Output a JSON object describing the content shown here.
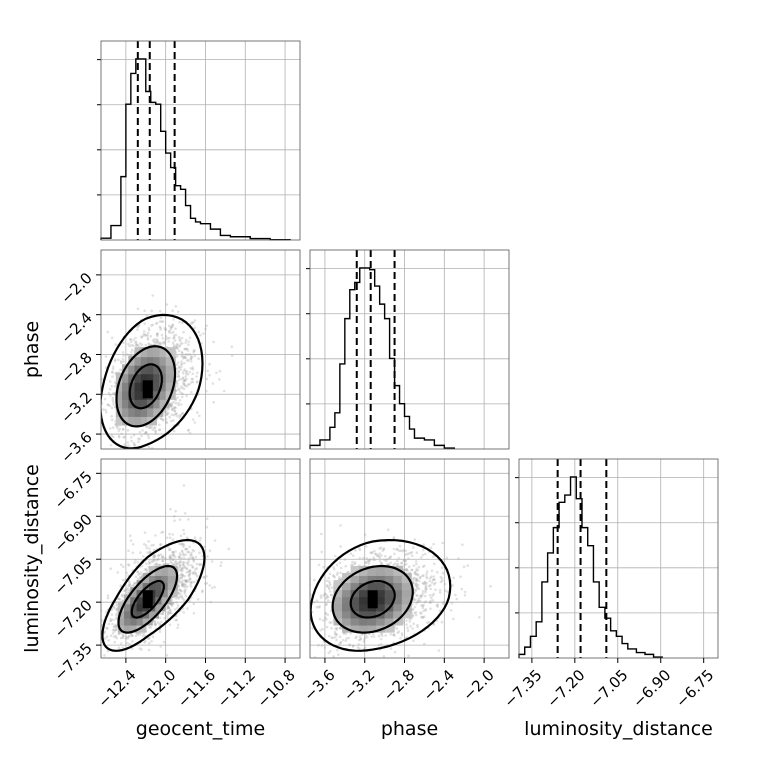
{
  "chart_data": {
    "type": "corner",
    "parameters": [
      "geocent_time",
      "phase",
      "luminosity_distance"
    ],
    "axes": {
      "geocent_time": {
        "label": "geocent_time",
        "range": [
          -12.65,
          -10.65
        ],
        "ticks": [
          -12.4,
          -12.0,
          -11.6,
          -11.2,
          -10.8
        ],
        "tick_labels": [
          "−12.4",
          "−12.0",
          "−11.6",
          "−11.2",
          "−10.8"
        ]
      },
      "phase": {
        "label": "phase",
        "range": [
          -3.75,
          -1.75
        ],
        "ticks": [
          -3.6,
          -3.2,
          -2.8,
          -2.4,
          -2.0
        ],
        "tick_labels": [
          "−3.6",
          "−3.2",
          "−2.8",
          "−2.4",
          "−2.0"
        ]
      },
      "luminosity_distance": {
        "label": "luminosity_distance",
        "range": [
          -7.395,
          -6.7
        ],
        "ticks": [
          -7.35,
          -7.2,
          -7.05,
          -6.9,
          -6.75
        ],
        "tick_labels": [
          "−7.35",
          "−7.20",
          "−7.05",
          "−6.90",
          "−6.75"
        ]
      }
    },
    "histograms": {
      "geocent_time": {
        "bin_edges": [
          -12.65,
          -12.55,
          -12.45,
          -12.4,
          -12.35,
          -12.3,
          -12.25,
          -12.2,
          -12.15,
          -12.1,
          -12.05,
          -12.0,
          -11.95,
          -11.9,
          -11.85,
          -11.8,
          -11.75,
          -11.7,
          -11.65,
          -11.55,
          -11.45,
          -11.35,
          -11.15,
          -10.95,
          -10.75
        ],
        "counts": [
          0.01,
          0.08,
          0.35,
          0.75,
          0.92,
          1.0,
          1.0,
          0.82,
          0.76,
          0.75,
          0.6,
          0.48,
          0.4,
          0.3,
          0.28,
          0.19,
          0.12,
          0.1,
          0.09,
          0.06,
          0.025,
          0.018,
          0.008,
          0.002
        ],
        "quantiles": [
          -12.28,
          -12.16,
          -11.91
        ]
      },
      "phase": {
        "bin_edges": [
          -3.75,
          -3.65,
          -3.55,
          -3.5,
          -3.45,
          -3.4,
          -3.35,
          -3.3,
          -3.25,
          -3.2,
          -3.15,
          -3.1,
          -3.05,
          -3.0,
          -2.95,
          -2.9,
          -2.85,
          -2.8,
          -2.75,
          -2.7,
          -2.6,
          -2.5,
          -2.4,
          -2.3
        ],
        "counts": [
          0.02,
          0.05,
          0.12,
          0.2,
          0.47,
          0.72,
          0.88,
          0.92,
          1.0,
          1.0,
          0.99,
          0.9,
          0.8,
          0.72,
          0.5,
          0.35,
          0.25,
          0.18,
          0.11,
          0.06,
          0.05,
          0.02,
          0.005
        ],
        "quantiles": [
          -3.28,
          -3.14,
          -2.9
        ]
      },
      "luminosity_distance": {
        "bin_edges": [
          -7.395,
          -7.375,
          -7.355,
          -7.335,
          -7.315,
          -7.295,
          -7.275,
          -7.255,
          -7.235,
          -7.215,
          -7.195,
          -7.175,
          -7.155,
          -7.135,
          -7.115,
          -7.095,
          -7.075,
          -7.055,
          -7.035,
          -7.015,
          -6.985,
          -6.955,
          -6.925,
          -6.895
        ],
        "counts": [
          0.02,
          0.06,
          0.12,
          0.2,
          0.42,
          0.58,
          0.72,
          0.86,
          0.9,
          1.0,
          0.88,
          0.72,
          0.62,
          0.42,
          0.28,
          0.22,
          0.15,
          0.12,
          0.08,
          0.05,
          0.03,
          0.02,
          0.005
        ],
        "quantiles": [
          -7.26,
          -7.18,
          -7.09
        ]
      }
    },
    "joint_2d": [
      {
        "x": "geocent_time",
        "y": "phase",
        "center": [
          -12.2,
          -3.12
        ],
        "sd": [
          0.19,
          0.26
        ],
        "corr": 0.32,
        "levels": [
          0.12,
          0.22,
          0.34
        ],
        "mode_cell": [
          -12.18,
          -3.15
        ]
      },
      {
        "x": "geocent_time",
        "y": "luminosity_distance",
        "center": [
          -12.18,
          -7.19
        ],
        "sd": [
          0.19,
          0.075
        ],
        "corr": 0.7,
        "levels": [
          0.11,
          0.19,
          0.29
        ],
        "mode_cell": [
          -12.18,
          -7.19
        ]
      },
      {
        "x": "phase",
        "y": "luminosity_distance",
        "center": [
          -3.12,
          -7.19
        ],
        "sd": [
          0.26,
          0.075
        ],
        "corr": 0.22,
        "levels": [
          0.11,
          0.19,
          0.29
        ],
        "mode_cell": [
          -3.12,
          -7.19
        ]
      }
    ],
    "grid": true,
    "colors": {
      "contour": "#000000",
      "points": "#a9a9a9",
      "density_dark": "#000000"
    }
  }
}
